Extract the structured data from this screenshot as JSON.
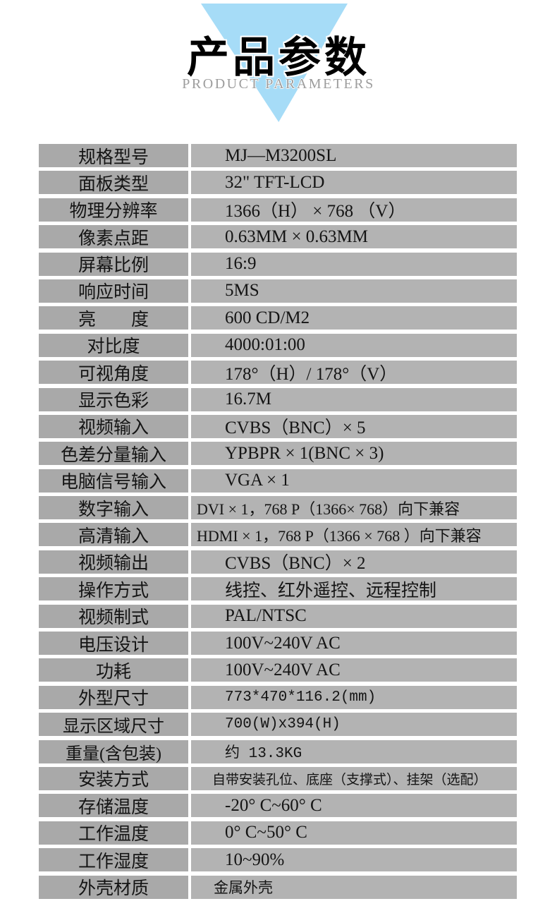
{
  "header": {
    "title": "产品参数",
    "subtitle": "PRODUCT PARAMETERS"
  },
  "colors": {
    "triangle": "#a6dcf7",
    "title": "#000000",
    "subtitle": "#9d9d9d",
    "label_cell_bg": "#a9a9a9",
    "value_cell_bg": "#b3b3b3",
    "text": "#141414"
  },
  "table": {
    "rows": [
      {
        "label": "规格型号",
        "value": "MJ—M3200SL"
      },
      {
        "label": "面板类型",
        "value": "32\" TFT-LCD"
      },
      {
        "label": "物理分辨率",
        "value": "1366（H） ×  768 （V）"
      },
      {
        "label": "像素点距",
        "value": "0.63MM × 0.63MM"
      },
      {
        "label": "屏幕比例",
        "value": "16:9"
      },
      {
        "label": "响应时间",
        "value": "5MS"
      },
      {
        "label": "亮　　度",
        "value": "600 CD/M2"
      },
      {
        "label": "对比度",
        "value": "4000:01:00"
      },
      {
        "label": "可视角度",
        "value": "178°（H）/ 178°（V）"
      },
      {
        "label": "显示色彩",
        "value": "16.7M"
      },
      {
        "label": "视频输入",
        "value": "CVBS（BNC）× 5"
      },
      {
        "label": "色差分量输入",
        "value": "YPBPR × 1(BNC × 3)"
      },
      {
        "label": "电脑信号输入",
        "value": "VGA × 1"
      },
      {
        "label": "数字输入",
        "value": "DVI × 1，768 P（1366× 768）向下兼容"
      },
      {
        "label": "高清输入",
        "value": "HDMI × 1，768 P（1366 × 768 ）向下兼容"
      },
      {
        "label": "视频输出",
        "value": "CVBS（BNC）× 2"
      },
      {
        "label": "操作方式",
        "value": "线控、红外遥控、远程控制"
      },
      {
        "label": "视频制式",
        "value": "PAL/NTSC"
      },
      {
        "label": "电压设计",
        "value": "100V~240V AC"
      },
      {
        "label": "功耗",
        "value": "100V~240V AC"
      },
      {
        "label": "外型尺寸",
        "value": "773*470*116.2(mm)"
      },
      {
        "label": "显示区域尺寸",
        "value": "700(W)x394(H)"
      },
      {
        "label": "重量(含包装)",
        "value": "约 13.3KG"
      },
      {
        "label": "安装方式",
        "value": "自带安装孔位、底座（支撑式）、挂架（选配）"
      },
      {
        "label": "存储温度",
        "value": "-20° C~60° C"
      },
      {
        "label": "工作温度",
        "value": "0° C~50° C"
      },
      {
        "label": "工作湿度",
        "value": "10~90%"
      },
      {
        "label": "外壳材质",
        "value": "金属外壳"
      }
    ]
  }
}
